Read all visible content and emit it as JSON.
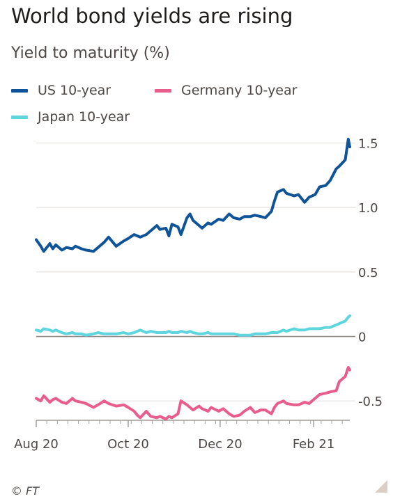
{
  "title": "World bond yields are rising",
  "subtitle": "Yield to maturity (%)",
  "source": "© FT",
  "chart_data": {
    "type": "line",
    "title": "World bond yields are rising",
    "subtitle": "Yield to maturity (%)",
    "ylim": [
      -0.65,
      1.6
    ],
    "yticks": [
      -0.5,
      0,
      0.5,
      1.0,
      1.5
    ],
    "ytick_labels": [
      "-0.5",
      "0",
      "0.5",
      "1.0",
      "1.5"
    ],
    "xticks": [
      {
        "date": "2020-08-01",
        "label": "Aug 20"
      },
      {
        "date": "2020-10-01",
        "label": "Oct 20"
      },
      {
        "date": "2020-12-01",
        "label": "Dec 20"
      },
      {
        "date": "2021-02-01",
        "label": "Feb 21"
      }
    ],
    "xlim": [
      "2020-08-01",
      "2021-02-25"
    ],
    "grid": true,
    "legend_position": "top",
    "series": [
      {
        "name": "US 10-year",
        "color": "#0f5499",
        "x": [
          "2020-08-01",
          "2020-08-04",
          "2020-08-06",
          "2020-08-10",
          "2020-08-12",
          "2020-08-14",
          "2020-08-18",
          "2020-08-21",
          "2020-08-25",
          "2020-08-27",
          "2020-08-31",
          "2020-09-03",
          "2020-09-08",
          "2020-09-11",
          "2020-09-15",
          "2020-09-18",
          "2020-09-23",
          "2020-09-28",
          "2020-10-01",
          "2020-10-05",
          "2020-10-07",
          "2020-10-09",
          "2020-10-13",
          "2020-10-16",
          "2020-10-20",
          "2020-10-22",
          "2020-10-26",
          "2020-10-28",
          "2020-10-30",
          "2020-11-03",
          "2020-11-05",
          "2020-11-09",
          "2020-11-11",
          "2020-11-13",
          "2020-11-17",
          "2020-11-19",
          "2020-11-23",
          "2020-11-25",
          "2020-11-30",
          "2020-12-03",
          "2020-12-07",
          "2020-12-10",
          "2020-12-14",
          "2020-12-17",
          "2020-12-21",
          "2020-12-24",
          "2020-12-28",
          "2020-12-31",
          "2021-01-04",
          "2021-01-06",
          "2021-01-08",
          "2021-01-12",
          "2021-01-14",
          "2021-01-19",
          "2021-01-22",
          "2021-01-26",
          "2021-01-29",
          "2021-02-02",
          "2021-02-05",
          "2021-02-09",
          "2021-02-12",
          "2021-02-16",
          "2021-02-18",
          "2021-02-22",
          "2021-02-24",
          "2021-02-25"
        ],
        "values": [
          0.75,
          0.7,
          0.66,
          0.72,
          0.68,
          0.71,
          0.67,
          0.69,
          0.68,
          0.7,
          0.68,
          0.67,
          0.66,
          0.69,
          0.73,
          0.77,
          0.7,
          0.74,
          0.76,
          0.79,
          0.78,
          0.77,
          0.79,
          0.82,
          0.86,
          0.83,
          0.84,
          0.78,
          0.87,
          0.85,
          0.79,
          0.92,
          0.95,
          0.9,
          0.86,
          0.84,
          0.88,
          0.87,
          0.91,
          0.9,
          0.95,
          0.92,
          0.91,
          0.93,
          0.93,
          0.94,
          0.93,
          0.92,
          0.97,
          1.05,
          1.12,
          1.14,
          1.11,
          1.09,
          1.1,
          1.04,
          1.08,
          1.1,
          1.16,
          1.17,
          1.21,
          1.3,
          1.32,
          1.37,
          1.53,
          1.47
        ]
      },
      {
        "name": "Germany 10-year",
        "color": "#e95d8c",
        "x": [
          "2020-08-01",
          "2020-08-04",
          "2020-08-06",
          "2020-08-10",
          "2020-08-12",
          "2020-08-14",
          "2020-08-18",
          "2020-08-21",
          "2020-08-25",
          "2020-08-27",
          "2020-08-31",
          "2020-09-03",
          "2020-09-08",
          "2020-09-11",
          "2020-09-15",
          "2020-09-18",
          "2020-09-23",
          "2020-09-28",
          "2020-10-01",
          "2020-10-05",
          "2020-10-07",
          "2020-10-09",
          "2020-10-13",
          "2020-10-16",
          "2020-10-20",
          "2020-10-22",
          "2020-10-26",
          "2020-10-28",
          "2020-10-30",
          "2020-11-03",
          "2020-11-05",
          "2020-11-09",
          "2020-11-11",
          "2020-11-13",
          "2020-11-17",
          "2020-11-19",
          "2020-11-23",
          "2020-11-25",
          "2020-11-30",
          "2020-12-03",
          "2020-12-07",
          "2020-12-10",
          "2020-12-14",
          "2020-12-17",
          "2020-12-21",
          "2020-12-24",
          "2020-12-28",
          "2020-12-31",
          "2021-01-04",
          "2021-01-06",
          "2021-01-08",
          "2021-01-12",
          "2021-01-14",
          "2021-01-19",
          "2021-01-22",
          "2021-01-26",
          "2021-01-29",
          "2021-02-02",
          "2021-02-05",
          "2021-02-09",
          "2021-02-12",
          "2021-02-16",
          "2021-02-18",
          "2021-02-22",
          "2021-02-24",
          "2021-02-25"
        ],
        "values": [
          -0.48,
          -0.5,
          -0.46,
          -0.51,
          -0.49,
          -0.48,
          -0.51,
          -0.52,
          -0.48,
          -0.5,
          -0.51,
          -0.52,
          -0.55,
          -0.53,
          -0.5,
          -0.52,
          -0.54,
          -0.53,
          -0.55,
          -0.58,
          -0.61,
          -0.63,
          -0.58,
          -0.62,
          -0.63,
          -0.62,
          -0.64,
          -0.62,
          -0.63,
          -0.6,
          -0.5,
          -0.53,
          -0.55,
          -0.57,
          -0.54,
          -0.56,
          -0.58,
          -0.55,
          -0.58,
          -0.56,
          -0.6,
          -0.62,
          -0.61,
          -0.58,
          -0.55,
          -0.59,
          -0.57,
          -0.57,
          -0.6,
          -0.55,
          -0.52,
          -0.5,
          -0.52,
          -0.53,
          -0.53,
          -0.51,
          -0.52,
          -0.48,
          -0.45,
          -0.44,
          -0.43,
          -0.42,
          -0.35,
          -0.31,
          -0.24,
          -0.26
        ]
      },
      {
        "name": "Japan 10-year",
        "color": "#5fd6de",
        "x": [
          "2020-08-01",
          "2020-08-04",
          "2020-08-06",
          "2020-08-10",
          "2020-08-12",
          "2020-08-14",
          "2020-08-18",
          "2020-08-21",
          "2020-08-25",
          "2020-08-27",
          "2020-08-31",
          "2020-09-03",
          "2020-09-08",
          "2020-09-11",
          "2020-09-15",
          "2020-09-18",
          "2020-09-23",
          "2020-09-28",
          "2020-10-01",
          "2020-10-05",
          "2020-10-07",
          "2020-10-09",
          "2020-10-13",
          "2020-10-16",
          "2020-10-20",
          "2020-10-22",
          "2020-10-26",
          "2020-10-28",
          "2020-10-30",
          "2020-11-03",
          "2020-11-05",
          "2020-11-09",
          "2020-11-11",
          "2020-11-13",
          "2020-11-17",
          "2020-11-19",
          "2020-11-23",
          "2020-11-25",
          "2020-11-30",
          "2020-12-03",
          "2020-12-07",
          "2020-12-10",
          "2020-12-14",
          "2020-12-17",
          "2020-12-21",
          "2020-12-24",
          "2020-12-28",
          "2020-12-31",
          "2021-01-04",
          "2021-01-06",
          "2021-01-08",
          "2021-01-12",
          "2021-01-14",
          "2021-01-19",
          "2021-01-22",
          "2021-01-26",
          "2021-01-29",
          "2021-02-02",
          "2021-02-05",
          "2021-02-09",
          "2021-02-12",
          "2021-02-16",
          "2021-02-18",
          "2021-02-22",
          "2021-02-24",
          "2021-02-25"
        ],
        "values": [
          0.05,
          0.04,
          0.06,
          0.05,
          0.04,
          0.05,
          0.03,
          0.02,
          0.03,
          0.02,
          0.02,
          0.01,
          0.02,
          0.03,
          0.02,
          0.02,
          0.02,
          0.03,
          0.02,
          0.03,
          0.04,
          0.05,
          0.03,
          0.04,
          0.03,
          0.03,
          0.03,
          0.04,
          0.03,
          0.03,
          0.04,
          0.03,
          0.04,
          0.03,
          0.02,
          0.02,
          0.03,
          0.02,
          0.02,
          0.02,
          0.02,
          0.02,
          0.01,
          0.01,
          0.01,
          0.02,
          0.02,
          0.02,
          0.03,
          0.03,
          0.03,
          0.05,
          0.04,
          0.06,
          0.05,
          0.05,
          0.06,
          0.06,
          0.06,
          0.07,
          0.07,
          0.09,
          0.1,
          0.12,
          0.15,
          0.16
        ]
      }
    ]
  }
}
